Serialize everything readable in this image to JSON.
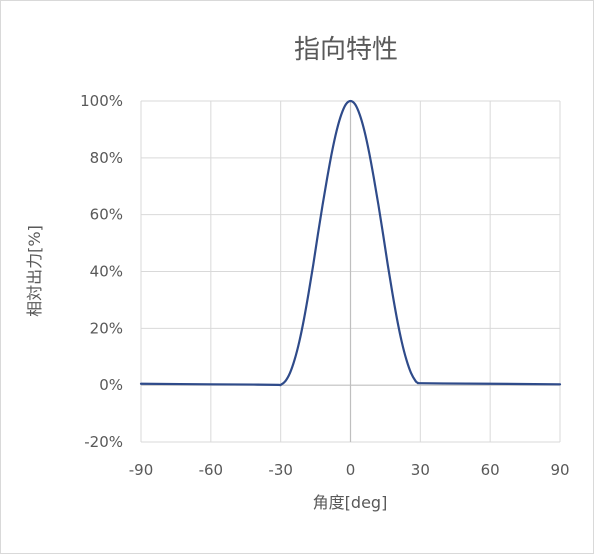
{
  "chart_data": {
    "type": "line",
    "title": "指向特性",
    "xlabel": "角度[deg]",
    "ylabel": "相対出力[%]",
    "xlim": [
      -90,
      90
    ],
    "ylim": [
      -20,
      100
    ],
    "xticks": [
      -90,
      -60,
      -30,
      0,
      30,
      60,
      90
    ],
    "yticks": [
      -20,
      0,
      20,
      40,
      60,
      80,
      100
    ],
    "ytick_labels": [
      "-20%",
      "0%",
      "20%",
      "40%",
      "60%",
      "80%",
      "100%"
    ],
    "grid": true,
    "legend": "none",
    "series": [
      {
        "color": "#2f4b8a",
        "x": [
          -90,
          -60,
          -40,
          -31,
          -30,
          -28,
          -26,
          -24,
          -22,
          -20,
          -18,
          -16,
          -14,
          -12,
          -10,
          -8,
          -6,
          -4,
          -2,
          0,
          2,
          4,
          6,
          8,
          10,
          12,
          14,
          16,
          18,
          20,
          22,
          24,
          26,
          28,
          29,
          30,
          40,
          60,
          90
        ],
        "y": [
          0.5,
          0.3,
          0.2,
          0.1,
          0.1,
          1.4,
          4.3,
          9.0,
          15.3,
          23.2,
          32.4,
          42.4,
          53.1,
          63.4,
          73.0,
          81.9,
          89.4,
          95.1,
          98.8,
          100,
          98.8,
          95.1,
          89.4,
          81.9,
          73.0,
          63.4,
          53.1,
          42.4,
          32.4,
          23.2,
          15.3,
          9.0,
          4.3,
          1.4,
          0.8,
          0.7,
          0.6,
          0.5,
          0.3
        ]
      }
    ]
  }
}
